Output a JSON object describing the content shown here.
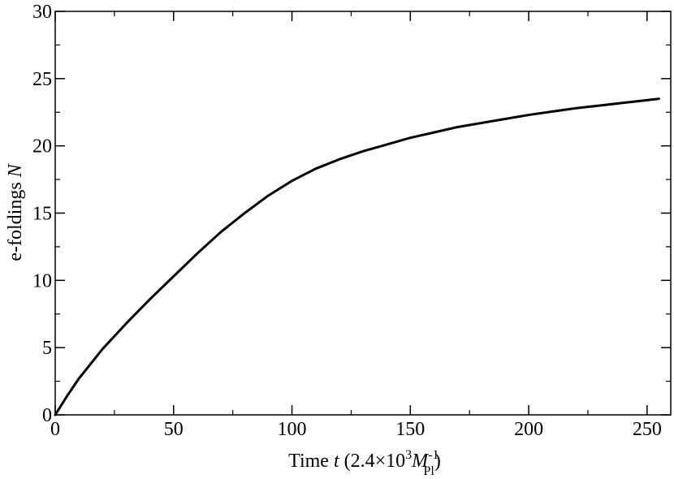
{
  "chart_data": {
    "type": "line",
    "xlabel": {
      "text": "Time ",
      "var": "t",
      "paren": " (2.4×10",
      "exp": "3",
      "mass": "M",
      "mass_exp": "-1",
      "mass_sub": "Pl",
      "close": ")"
    },
    "ylabel": {
      "text": "e-foldings ",
      "var": "N"
    },
    "xlim": [
      0,
      260
    ],
    "ylim": [
      0,
      30
    ],
    "xticks": [
      0,
      50,
      100,
      150,
      200,
      250
    ],
    "yticks": [
      0,
      5,
      10,
      15,
      20,
      25,
      30
    ],
    "xtick_labels": [
      "0",
      "50",
      "100",
      "150",
      "200",
      "250"
    ],
    "ytick_labels": [
      "0",
      "5",
      "10",
      "15",
      "20",
      "25",
      "30"
    ],
    "grid": false,
    "series": [
      {
        "color": "#000000",
        "x": [
          0,
          5,
          10,
          20,
          30,
          40,
          50,
          60,
          70,
          80,
          90,
          100,
          110,
          120,
          130,
          140,
          150,
          160,
          170,
          180,
          190,
          200,
          210,
          220,
          230,
          240,
          250,
          255
        ],
        "y": [
          0,
          1.4,
          2.7,
          4.9,
          6.8,
          8.6,
          10.3,
          12.0,
          13.6,
          15.0,
          16.3,
          17.4,
          18.3,
          19.0,
          19.6,
          20.1,
          20.6,
          21.0,
          21.4,
          21.7,
          22.0,
          22.3,
          22.55,
          22.8,
          23.0,
          23.2,
          23.4,
          23.5
        ]
      }
    ]
  }
}
